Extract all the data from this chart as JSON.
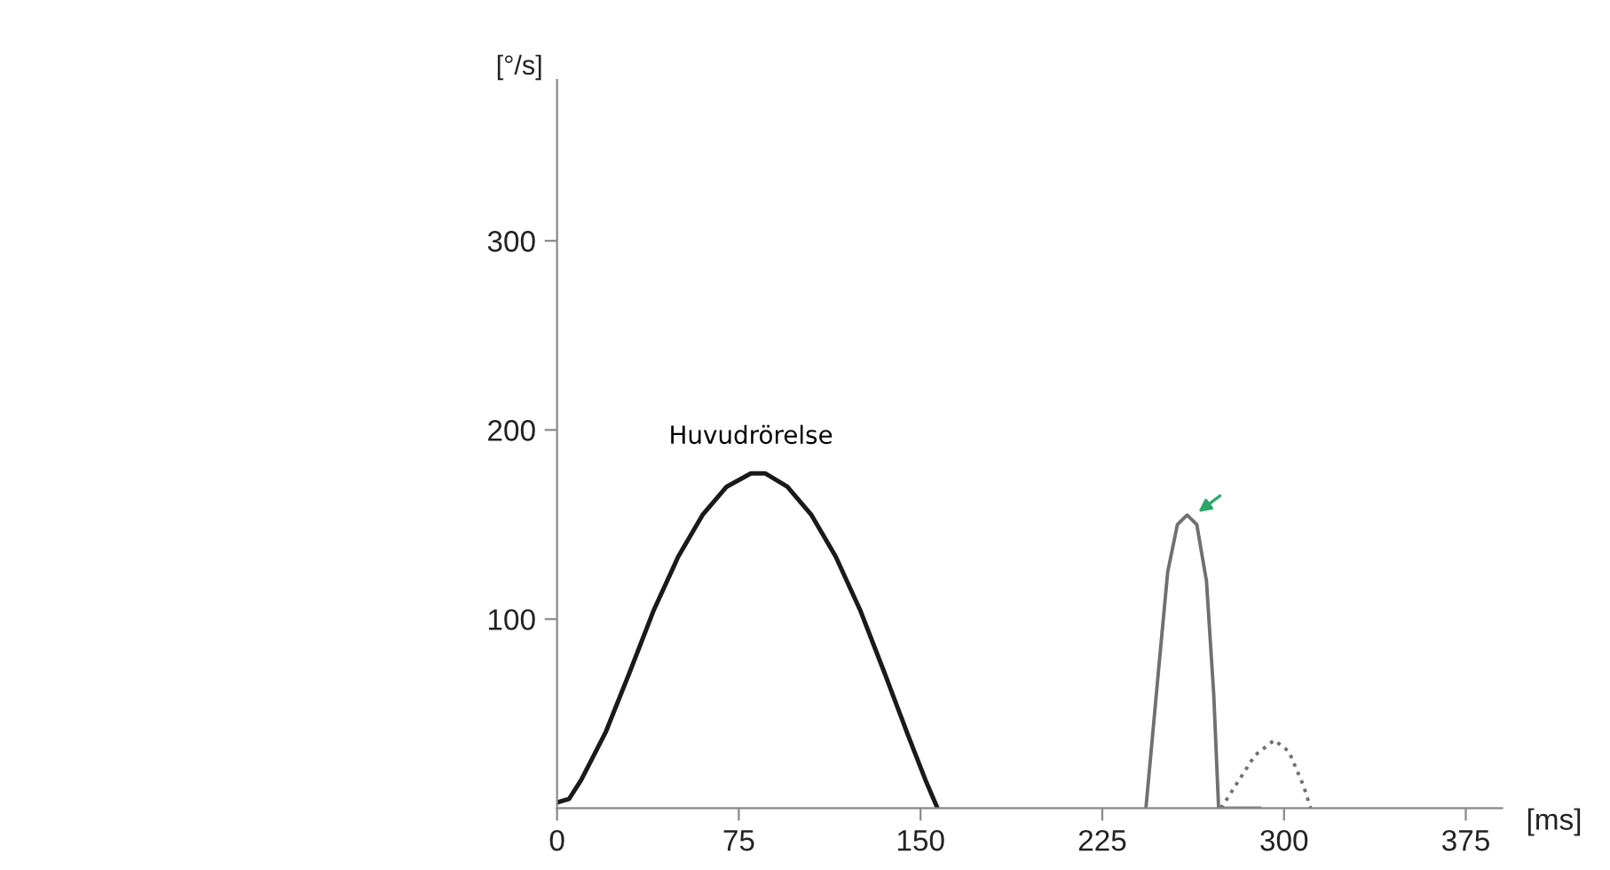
{
  "chart_data": {
    "type": "line",
    "xlabel": "[ms]",
    "ylabel": "[°/s]",
    "xlim": [
      0,
      390
    ],
    "ylim": [
      0,
      385
    ],
    "xticks": [
      0,
      75,
      150,
      225,
      300,
      375
    ],
    "yticks": [
      100,
      200,
      300
    ],
    "grid": false,
    "legend": false,
    "marker": "none",
    "annotations": [
      "Huvudrörelse"
    ],
    "series": [
      {
        "x": [
          0,
          5,
          10,
          20,
          30,
          40,
          50,
          60,
          70,
          80,
          86,
          95,
          105,
          115,
          125,
          135,
          145,
          152,
          157
        ],
        "values": [
          3,
          5,
          15,
          40,
          72,
          105,
          133,
          155,
          170,
          177,
          177,
          170,
          155,
          133,
          105,
          72,
          38,
          15,
          0
        ],
        "color": "#1a1a1a",
        "line_style": "solid"
      },
      {
        "x": [
          243,
          248,
          252,
          256,
          260,
          264,
          268,
          271,
          273,
          290
        ],
        "values": [
          0,
          70,
          125,
          150,
          155,
          150,
          120,
          60,
          0,
          0
        ],
        "color": "#707070",
        "line_style": "solid"
      },
      {
        "x": [
          274,
          280,
          288,
          296,
          302,
          308,
          311
        ],
        "values": [
          0,
          12,
          28,
          36,
          30,
          12,
          0
        ],
        "color": "#707070",
        "line_style": "dotted"
      }
    ]
  }
}
